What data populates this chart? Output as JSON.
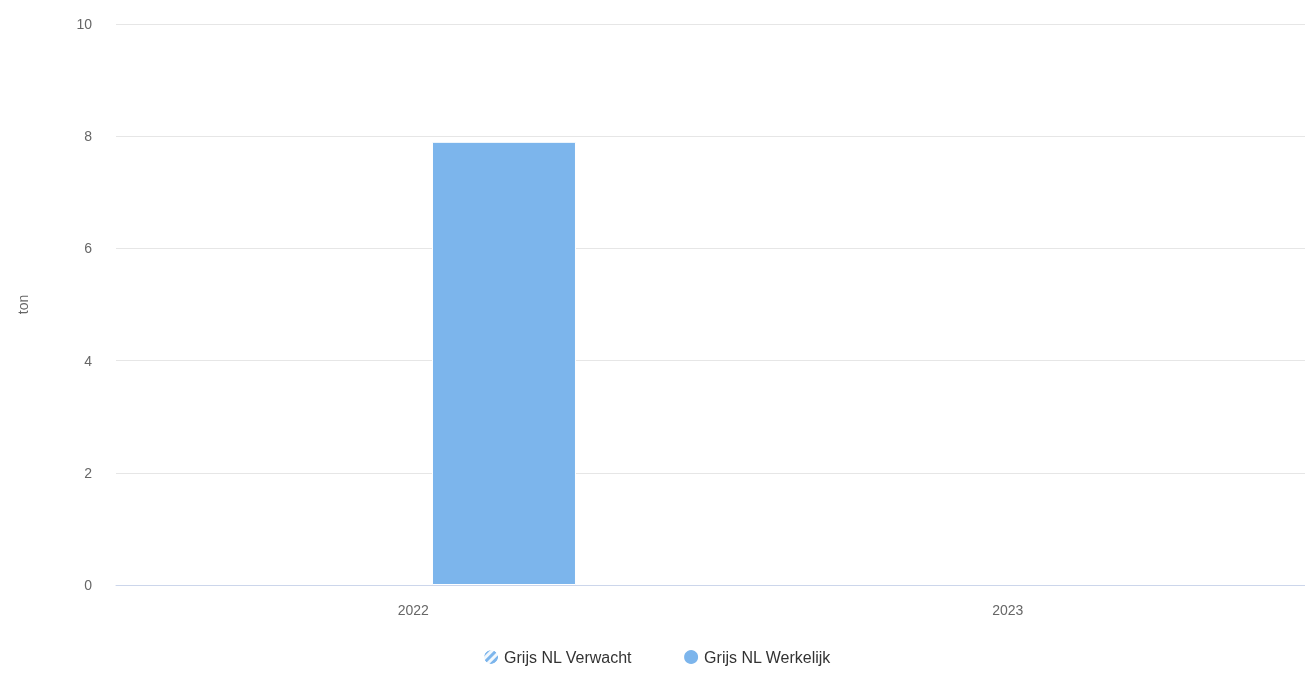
{
  "chart_data": {
    "type": "bar",
    "ylabel": "ton",
    "categories": [
      "2022",
      "2023"
    ],
    "series": [
      {
        "name": "Grijs NL Verwacht",
        "color": "#7cb5ec",
        "values": [
          null,
          null
        ]
      },
      {
        "name": "Grijs NL Werkelijk",
        "color": "#7cb5ec",
        "values": [
          7.9,
          null
        ]
      }
    ],
    "ylim": [
      0,
      10
    ],
    "yticks": [
      0,
      2,
      4,
      6,
      8,
      10
    ],
    "grid": "y",
    "legend": "bottom"
  }
}
